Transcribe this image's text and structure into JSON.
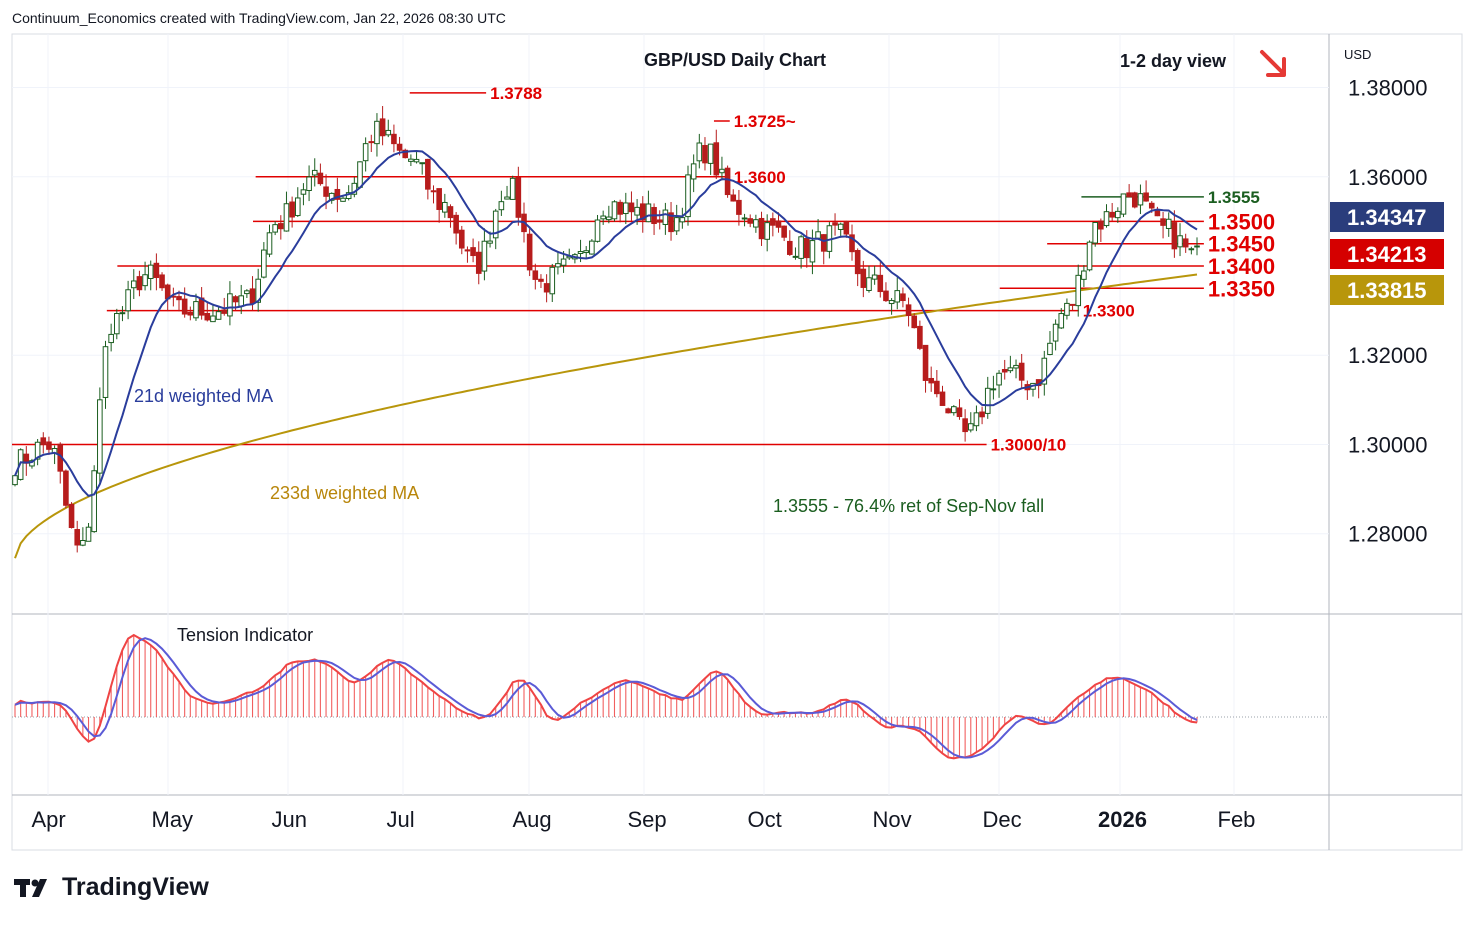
{
  "header": {
    "attribution": "Continuum_Economics created with TradingView.com, Jan 22, 2026 08:30 UTC"
  },
  "brand": {
    "name": "TradingView"
  },
  "chart_data": {
    "type": "candlestick",
    "title": "GBP/USD Daily Chart",
    "view_label": "1-2 day view",
    "view_direction": "down",
    "currency": "USD",
    "ylim": [
      1.262,
      1.392
    ],
    "y_ticks": [
      {
        "value": 1.38,
        "label": "1.38000"
      },
      {
        "value": 1.36,
        "label": "1.36000"
      },
      {
        "value": 1.32,
        "label": "1.32000"
      },
      {
        "value": 1.3,
        "label": "1.30000"
      },
      {
        "value": 1.28,
        "label": "1.28000"
      }
    ],
    "x_ticks": [
      {
        "label": "Apr",
        "bold": false
      },
      {
        "label": "May",
        "bold": false
      },
      {
        "label": "Jun",
        "bold": false
      },
      {
        "label": "Jul",
        "bold": false
      },
      {
        "label": "Aug",
        "bold": false
      },
      {
        "label": "Sep",
        "bold": false
      },
      {
        "label": "Oct",
        "bold": false
      },
      {
        "label": "Nov",
        "bold": false
      },
      {
        "label": "Dec",
        "bold": false
      },
      {
        "label": "2026",
        "bold": true
      },
      {
        "label": "Feb",
        "bold": false
      }
    ],
    "price_badges": [
      {
        "label": "1.34347",
        "value": 1.34347,
        "color": "#2a3d7c"
      },
      {
        "label": "1.34213",
        "value": 1.34213,
        "color": "#d50000"
      },
      {
        "label": "1.33815",
        "value": 1.33815,
        "color": "#b8960b"
      }
    ],
    "levels": [
      {
        "value": 1.3788,
        "label": "1.3788",
        "start": 0.302,
        "end": 0.36,
        "color": "#e00000"
      },
      {
        "value": 1.3725,
        "label": "1.3725~",
        "start": 0.533,
        "end": 0.545,
        "color": "#e00000"
      },
      {
        "value": 1.36,
        "label": "1.3600",
        "start": 0.185,
        "end": 0.545,
        "color": "#e00000"
      },
      {
        "value": 1.3555,
        "label": "1.3555",
        "start": 0.812,
        "end": 0.905,
        "color": "#1b5e20"
      },
      {
        "value": 1.35,
        "label": "1.3500",
        "start": 0.183,
        "end": 0.905,
        "color": "#e00000"
      },
      {
        "value": 1.345,
        "label": "1.3450",
        "start": 0.786,
        "end": 0.905,
        "color": "#e00000"
      },
      {
        "value": 1.34,
        "label": "1.3400",
        "start": 0.08,
        "end": 0.905,
        "color": "#e00000"
      },
      {
        "value": 1.335,
        "label": "1.3350",
        "start": 0.75,
        "end": 0.905,
        "color": "#e00000"
      },
      {
        "value": 1.33,
        "label": "1.3300",
        "start": 0.072,
        "end": 0.81,
        "color": "#e00000"
      },
      {
        "value": 1.3,
        "label": "1.3000/10",
        "start": 0.0,
        "end": 0.74,
        "color": "#e00000"
      }
    ],
    "annotations": [
      {
        "text": "21d weighted MA",
        "color": "#2a3d9c"
      },
      {
        "text": "233d weighted MA",
        "color": "#b8860b"
      },
      {
        "text": "1.3555 - 76.4% ret of Sep-Nov fall",
        "color": "#1b5e20"
      }
    ],
    "indicator": {
      "name": "Tension Indicator"
    },
    "colors": {
      "up": "#1b5e20",
      "down": "#b71c1c",
      "ma21": "#2a3d9c",
      "ma233": "#b8960b",
      "level": "#e00000",
      "osc_fast": "#ef4444",
      "osc_slow": "#5b5bd6",
      "grid": "#f0f3fa"
    },
    "months": [
      {
        "name": "Apr",
        "start": 1.295,
        "end": 1.31
      },
      {
        "name": "May",
        "start": 1.331,
        "end": 1.33
      },
      {
        "name": "Jun",
        "start": 1.348,
        "end": 1.363
      },
      {
        "name": "Jul",
        "start": 1.372,
        "end": 1.368
      },
      {
        "name": "Aug",
        "start": 1.33,
        "end": 1.342
      },
      {
        "name": "Sep",
        "start": 1.348,
        "end": 1.353
      },
      {
        "name": "Oct",
        "start": 1.342,
        "end": 1.335
      },
      {
        "name": "Nov",
        "start": 1.315,
        "end": 1.312
      },
      {
        "name": "Dec",
        "start": 1.321,
        "end": 1.35
      },
      {
        "name": "Jan",
        "start": 1.345,
        "end": 1.3421
      }
    ],
    "ohlc_anchors": [
      [
        1.296,
        1.298
      ],
      [
        1.3,
        1.286
      ],
      [
        1.276,
        1.31
      ],
      [
        1.328,
        1.33
      ],
      [
        1.338,
        1.344
      ],
      [
        1.33,
        1.326
      ],
      [
        1.33,
        1.32
      ],
      [
        1.332,
        1.346
      ],
      [
        1.35,
        1.352
      ],
      [
        1.359,
        1.36
      ],
      [
        1.356,
        1.362
      ],
      [
        1.37,
        1.376
      ],
      [
        1.364,
        1.36
      ],
      [
        1.354,
        1.346
      ],
      [
        1.34,
        1.342
      ],
      [
        1.358,
        1.348
      ],
      [
        1.336,
        1.32
      ],
      [
        1.34,
        1.342
      ],
      [
        1.354,
        1.35
      ],
      [
        1.352,
        1.344
      ],
      [
        1.35,
        1.346
      ],
      [
        1.366,
        1.362
      ],
      [
        1.353,
        1.352
      ],
      [
        1.348,
        1.34
      ],
      [
        1.344,
        1.35
      ],
      [
        1.347,
        1.345
      ],
      [
        1.336,
        1.33
      ],
      [
        1.332,
        1.324
      ],
      [
        1.312,
        1.306
      ],
      [
        1.302,
        1.318
      ],
      [
        1.316,
        1.308
      ],
      [
        1.314,
        1.324
      ],
      [
        1.33,
        1.336
      ],
      [
        1.35,
        1.352
      ],
      [
        1.356,
        1.35
      ],
      [
        1.348,
        1.342
      ]
    ]
  }
}
